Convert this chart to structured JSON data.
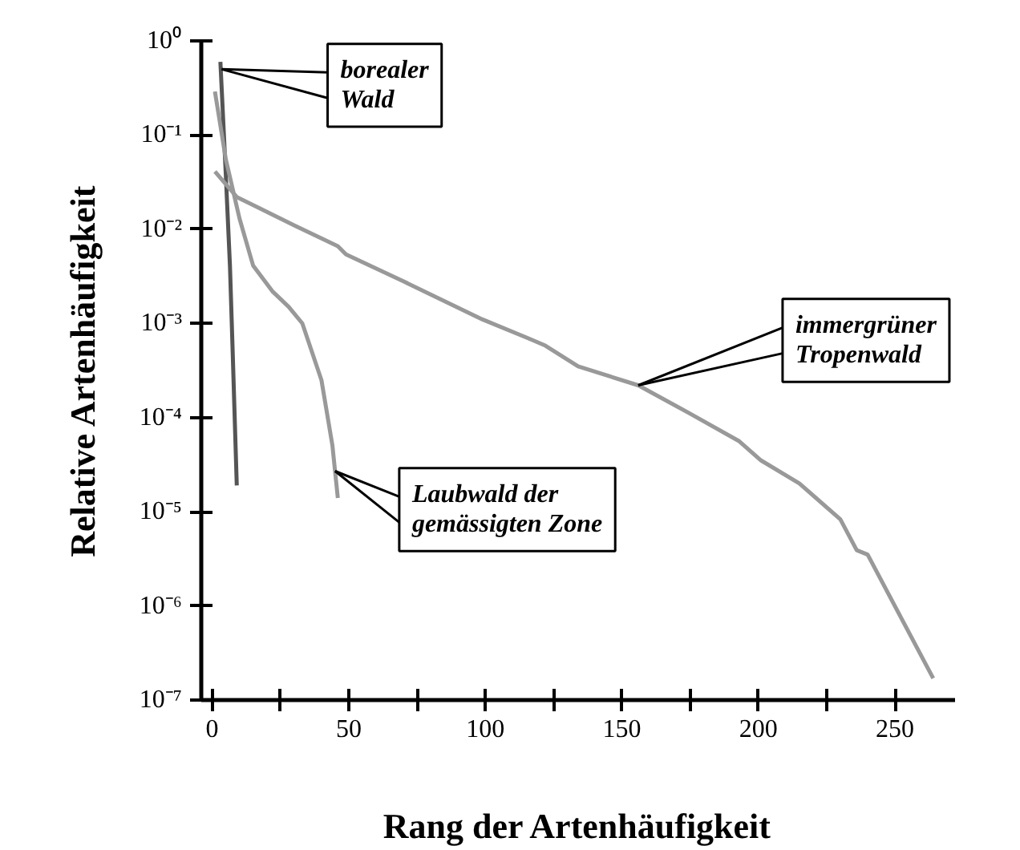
{
  "chart_data": {
    "type": "line",
    "xlabel": "Rang der Artenhäufigkeit",
    "ylabel": "Relative Artenhäufigkeit",
    "log": "y",
    "xlim": [
      -4,
      272
    ],
    "ylim": [
      1e-07,
      1
    ],
    "xticks": [
      0,
      {
        "value": 25,
        "label": null
      },
      50,
      {
        "value": 75,
        "label": null
      },
      100,
      {
        "value": 125,
        "label": null
      },
      150,
      {
        "value": 175,
        "label": null
      },
      200,
      {
        "value": 225,
        "label": null
      },
      250
    ],
    "yticks": [
      {
        "value": 1e-07,
        "label": "10⁻⁷"
      },
      {
        "value": 1e-06,
        "label": "10⁻⁶"
      },
      {
        "value": 1e-05,
        "label": "10⁻⁵"
      },
      {
        "value": 0.0001,
        "label": "10⁻⁴"
      },
      {
        "value": 0.001,
        "label": "10⁻³"
      },
      {
        "value": 0.01,
        "label": "10⁻²"
      },
      {
        "value": 0.1,
        "label": "10⁻¹"
      },
      {
        "value": 1,
        "label": "10⁰"
      }
    ],
    "grid": false,
    "line_style": "solid",
    "series": [
      {
        "color": "#555555",
        "x": [
          3,
          4,
          5,
          6.5,
          7.5,
          9
        ],
        "values": [
          0.6,
          0.15,
          0.037,
          0.0041,
          0.0005,
          1.9e-05
        ]
      },
      {
        "color": "#999999",
        "x": [
          1,
          5,
          10,
          15,
          22,
          28,
          33,
          40,
          44,
          46
        ],
        "values": [
          0.29,
          0.055,
          0.013,
          0.0041,
          0.0022,
          0.0015,
          0.001,
          0.00025,
          5.1e-05,
          1.4e-05
        ]
      },
      {
        "color": "#999999",
        "x": [
          1,
          9,
          30,
          46,
          49,
          70,
          99,
          116,
          122,
          134,
          156,
          175,
          193,
          201,
          215,
          230,
          236,
          240,
          264
        ],
        "values": [
          0.041,
          0.022,
          0.011,
          0.0066,
          0.0054,
          0.0028,
          0.0011,
          0.00069,
          0.00058,
          0.00035,
          0.00022,
          0.00011,
          5.6e-05,
          3.5e-05,
          2e-05,
          8.3e-06,
          3.9e-06,
          3.5e-06,
          1.7e-07
        ]
      }
    ],
    "annotations": [
      {
        "text": "borealer\nWald",
        "x": 3.5,
        "y": 0.5
      },
      {
        "text": "Laubwald  der\ngemässigten Zone",
        "x": 45,
        "y": 2.7e-05
      },
      {
        "text": "immergrüner\nTropenwald",
        "x": 156,
        "y": 0.00022
      }
    ]
  }
}
